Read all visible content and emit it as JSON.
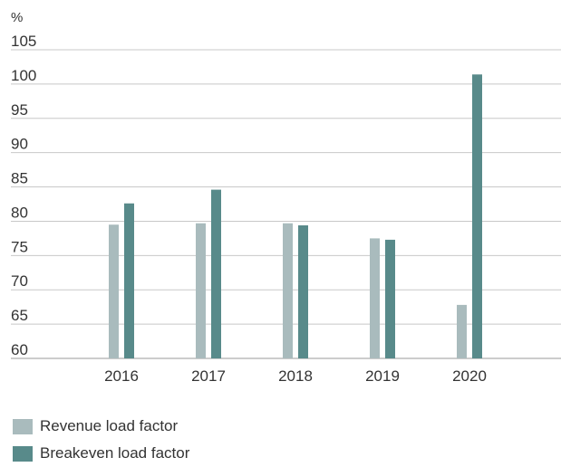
{
  "chart_data": {
    "type": "bar",
    "unit_label": "%",
    "categories": [
      "2016",
      "2017",
      "2018",
      "2019",
      "2020"
    ],
    "series": [
      {
        "name": "Revenue load factor",
        "color": "#a9bbbd",
        "values": [
          79.5,
          79.7,
          79.7,
          77.5,
          67.8
        ]
      },
      {
        "name": "Breakeven load factor",
        "color": "#588a8a",
        "values": [
          82.6,
          84.6,
          79.4,
          77.3,
          101.4
        ]
      }
    ],
    "ylim": [
      60,
      105
    ],
    "yticks": [
      60,
      65,
      70,
      75,
      80,
      85,
      90,
      95,
      100,
      105
    ],
    "grid": true,
    "legend_position": "bottom-left"
  }
}
